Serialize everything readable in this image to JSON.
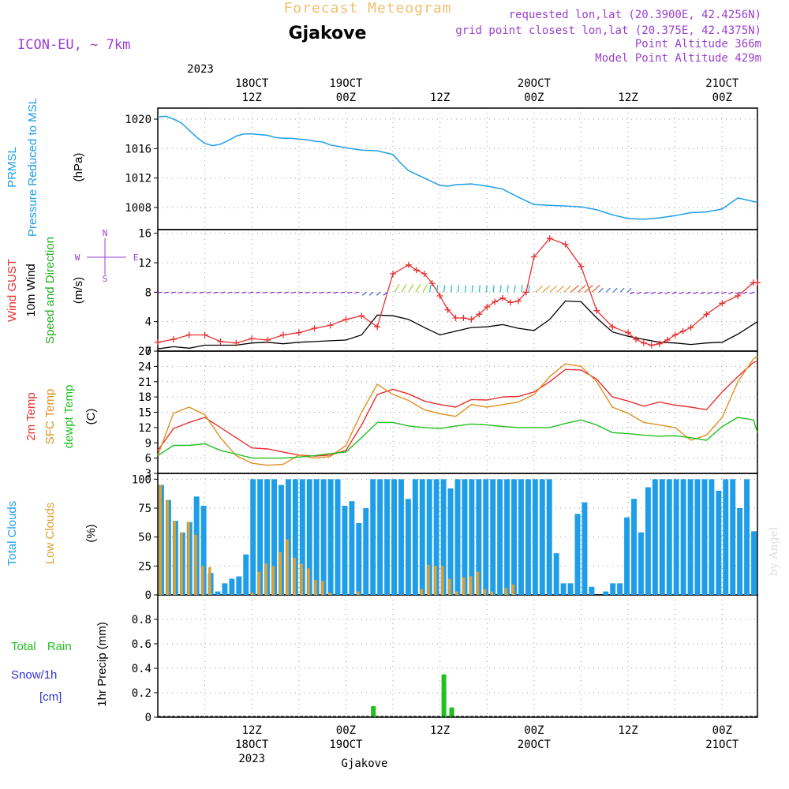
{
  "header": {
    "title": "Forecast Meteogram",
    "location": "Gjakove",
    "model": "ICON-EU, ~ 7km",
    "requested": "requested lon,lat (20.3900E, 42.4256N)",
    "gridpoint": "grid point closest lon,lat (20.375E, 42.4375N)",
    "point_alt": "Point Altitude 366m",
    "model_alt": "Model Point Altitude 429m",
    "credit": "by Angel",
    "footer_location": "Gjakove"
  },
  "time_axis": {
    "year": "2023",
    "top_labels": [
      {
        "h": 12,
        "l1": "18OCT",
        "l2": "12Z"
      },
      {
        "h": 24,
        "l1": "19OCT",
        "l2": "00Z"
      },
      {
        "h": 36,
        "l1": "",
        "l2": "12Z"
      },
      {
        "h": 48,
        "l1": "20OCT",
        "l2": "00Z"
      },
      {
        "h": 60,
        "l1": "",
        "l2": "12Z"
      },
      {
        "h": 72,
        "l1": "21OCT",
        "l2": "00Z"
      }
    ],
    "bottom_labels": [
      {
        "h": 12,
        "l1": "12Z",
        "l2": "18OCT",
        "l3": "2023"
      },
      {
        "h": 24,
        "l1": "00Z",
        "l2": "19OCT",
        "l3": ""
      },
      {
        "h": 36,
        "l1": "12Z",
        "l2": "",
        "l3": ""
      },
      {
        "h": 48,
        "l1": "00Z",
        "l2": "20OCT",
        "l3": ""
      },
      {
        "h": 60,
        "l1": "12Z",
        "l2": "",
        "l3": ""
      },
      {
        "h": 72,
        "l1": "00Z",
        "l2": "21OCT",
        "l3": ""
      }
    ],
    "hours_range": [
      0,
      76.5
    ]
  },
  "colors": {
    "pressure": "#1e9ee8",
    "gust": "#e83030",
    "wind": "#000000",
    "dir_label": "#20b020",
    "temp": "#e83030",
    "sfc": "#e09020",
    "dew": "#20c020",
    "total_cloud": "#1e9ee8",
    "low_cloud": "#e0a030",
    "rain": "#20c020",
    "snow": "#3030e0",
    "header_purple": "#9a3fd0",
    "header_title": "#f0c070"
  },
  "panel_labels": {
    "pressure": [
      "PRMSL",
      "Pressure Reduced to MSL",
      "(hPa)"
    ],
    "wind": [
      "Wind GUST",
      "10m Wind",
      "Speed and Direction",
      "(m/s)"
    ],
    "compass": {
      "n": "N",
      "s": "S",
      "e": "E",
      "w": "W"
    },
    "temp": [
      "2m Temp",
      "SFC Temp",
      "dewpt Temp",
      "(C)"
    ],
    "cloud": [
      "Total Clouds",
      "Low Clouds",
      "(%)"
    ],
    "precip": [
      "Total Rain",
      "Snow/1h",
      "[cm]",
      "1hr Precip (mm)"
    ]
  },
  "chart_data": [
    {
      "type": "line",
      "title": "PRMSL Pressure Reduced to MSL",
      "ylabel": "hPa",
      "ylim": [
        1005,
        1021.5
      ],
      "yticks": [
        1008,
        1012,
        1016,
        1020
      ],
      "series": [
        {
          "name": "PRMSL",
          "x": [
            0,
            1,
            2,
            3,
            4,
            5,
            6,
            7,
            8,
            9,
            10,
            11,
            12,
            13,
            14,
            15,
            16,
            17,
            18,
            19,
            20,
            21,
            22,
            23,
            24,
            26,
            28,
            30,
            31,
            32,
            34,
            36,
            37,
            38,
            40,
            42,
            44,
            46,
            48,
            50,
            52,
            54,
            56,
            58,
            60,
            62,
            64,
            66,
            68,
            70,
            72,
            74,
            76.5
          ],
          "values": [
            1020.3,
            1020.4,
            1020,
            1019.5,
            1018.5,
            1017.5,
            1016.7,
            1016.4,
            1016.6,
            1017.1,
            1017.7,
            1018,
            1018,
            1017.9,
            1017.8,
            1017.5,
            1017.4,
            1017.4,
            1017.3,
            1017.2,
            1017,
            1016.9,
            1016.5,
            1016.3,
            1016.1,
            1015.8,
            1015.7,
            1015.2,
            1014,
            1013,
            1012,
            1011,
            1010.9,
            1011.1,
            1011.2,
            1010.9,
            1010.5,
            1009.4,
            1008.4,
            1008.3,
            1008.2,
            1008.1,
            1007.7,
            1007,
            1006.5,
            1006.4,
            1006.6,
            1006.9,
            1007.3,
            1007.4,
            1007.8,
            1009.3,
            1008.7
          ]
        }
      ]
    },
    {
      "type": "line",
      "title": "Wind GUST and 10m Wind Speed",
      "ylabel": "m/s",
      "ylim": [
        0,
        16.5
      ],
      "yticks": [
        0,
        4,
        8,
        12,
        16
      ],
      "series": [
        {
          "name": "Wind GUST",
          "x": [
            0,
            2,
            4,
            6,
            8,
            10,
            12,
            14,
            16,
            18,
            20,
            22,
            24,
            26,
            28,
            30,
            32,
            33,
            34,
            35,
            36,
            37,
            38,
            39,
            40,
            41,
            42,
            43,
            44,
            45,
            46,
            47,
            48,
            50,
            52,
            54,
            56,
            58,
            60,
            61,
            62,
            63,
            64,
            65,
            66,
            67,
            68,
            70,
            72,
            74,
            76,
            76.5
          ],
          "values": [
            1.2,
            1.6,
            2.2,
            2.2,
            1.3,
            1.1,
            1.7,
            1.5,
            2.2,
            2.5,
            3.1,
            3.5,
            4.3,
            4.8,
            3.3,
            10.5,
            11.7,
            11,
            10.5,
            9.2,
            7.5,
            5.6,
            4.5,
            4.5,
            4.3,
            5,
            6,
            6.7,
            7.2,
            6.6,
            6.8,
            8,
            12.8,
            15.3,
            14.5,
            11.5,
            5.5,
            3.3,
            2.5,
            1.6,
            1.1,
            0.8,
            1,
            1.5,
            2.2,
            2.7,
            3.2,
            5,
            6.5,
            7.5,
            9.3,
            9.3
          ]
        },
        {
          "name": "10m Wind",
          "x": [
            0,
            2,
            4,
            6,
            8,
            10,
            12,
            14,
            16,
            18,
            20,
            22,
            24,
            26,
            28,
            30,
            32,
            34,
            36,
            38,
            40,
            42,
            44,
            46,
            48,
            50,
            52,
            54,
            56,
            58,
            60,
            62,
            64,
            66,
            68,
            70,
            72,
            74,
            76.5
          ],
          "values": [
            0.3,
            0.6,
            0.4,
            0.8,
            0.8,
            0.8,
            1.1,
            1.2,
            1,
            1.2,
            1.3,
            1.4,
            1.5,
            2.2,
            4.9,
            4.8,
            4.3,
            3.2,
            2.2,
            2.7,
            3.2,
            3.3,
            3.6,
            3.1,
            2.8,
            4.3,
            6.8,
            6.7,
            4.5,
            2.6,
            2.0,
            1.6,
            1.2,
            1.1,
            0.9,
            1.1,
            1.2,
            2.3,
            4.0
          ]
        }
      ]
    },
    {
      "type": "line",
      "title": "2m Temp, SFC Temp, dewpt Temp",
      "ylabel": "C",
      "ylim": [
        3,
        27
      ],
      "yticks": [
        3,
        6,
        9,
        12,
        15,
        18,
        21,
        24,
        27
      ],
      "series": [
        {
          "name": "2m Temp",
          "x": [
            0,
            2,
            4,
            6,
            8,
            10,
            12,
            14,
            16,
            18,
            20,
            22,
            24,
            26,
            28,
            30,
            32,
            34,
            36,
            38,
            40,
            42,
            44,
            46,
            48,
            50,
            52,
            54,
            56,
            58,
            60,
            62,
            64,
            66,
            68,
            70,
            72,
            74,
            76,
            76.5
          ],
          "values": [
            7.5,
            11.8,
            13,
            14,
            12,
            10,
            8,
            7.8,
            7.2,
            6.6,
            6.4,
            6.6,
            7.5,
            12.5,
            18.5,
            19.5,
            18.6,
            17.2,
            16.5,
            16,
            17.5,
            17.4,
            18,
            18.1,
            19,
            21,
            23.4,
            23.3,
            21.5,
            18,
            17.2,
            16.2,
            17,
            16.4,
            16,
            15.5,
            19,
            22,
            24.8,
            25
          ]
        },
        {
          "name": "SFC Temp",
          "x": [
            0,
            2,
            4,
            6,
            8,
            10,
            12,
            14,
            16,
            18,
            20,
            22,
            24,
            26,
            28,
            30,
            32,
            34,
            36,
            38,
            40,
            42,
            44,
            46,
            48,
            50,
            52,
            54,
            56,
            58,
            60,
            62,
            64,
            66,
            68,
            70,
            72,
            74,
            76,
            76.5
          ],
          "values": [
            6.5,
            14.8,
            16,
            14.5,
            10,
            6.5,
            5,
            4.6,
            4.8,
            6.6,
            6,
            6.3,
            8.5,
            15,
            20.5,
            18.5,
            17.3,
            15.5,
            14.7,
            14.2,
            16.5,
            16,
            16.5,
            17,
            18.5,
            22,
            24.5,
            24,
            21,
            16,
            14.8,
            13,
            12.5,
            12,
            9.5,
            10.5,
            14,
            21,
            25.5,
            26
          ]
        },
        {
          "name": "dewpt Temp",
          "x": [
            0,
            2,
            4,
            6,
            8,
            10,
            12,
            14,
            16,
            18,
            20,
            22,
            24,
            26,
            28,
            30,
            32,
            34,
            36,
            38,
            40,
            42,
            44,
            46,
            48,
            50,
            52,
            54,
            56,
            58,
            60,
            62,
            64,
            66,
            68,
            70,
            72,
            74,
            76,
            76.5
          ],
          "values": [
            6.5,
            8.5,
            8.5,
            8.8,
            7.5,
            6.8,
            6,
            6,
            6,
            6.2,
            6.5,
            6.9,
            7.2,
            10,
            13,
            13,
            12.3,
            12,
            11.8,
            12.3,
            12.7,
            12.5,
            12.2,
            12,
            12,
            12,
            12.8,
            13.5,
            12.5,
            11,
            10.8,
            10.5,
            10.3,
            10.4,
            10,
            9.5,
            12.2,
            14,
            13.5,
            11
          ]
        }
      ]
    },
    {
      "type": "bar",
      "title": "Total Clouds and Low Clouds",
      "ylabel": "%",
      "ylim": [
        0,
        105
      ],
      "yticks": [
        0,
        25,
        50,
        75,
        100
      ],
      "series": [
        {
          "name": "Total Clouds",
          "x_start": 0,
          "values": [
            95,
            82,
            64,
            54,
            63,
            85,
            77,
            19,
            3,
            10,
            14,
            16,
            35,
            100,
            100,
            100,
            100,
            95,
            100,
            100,
            100,
            100,
            100,
            100,
            100,
            100,
            77,
            81,
            62,
            75,
            100,
            100,
            100,
            100,
            100,
            83,
            100,
            100,
            100,
            100,
            100,
            92,
            100,
            100,
            100,
            100,
            100,
            100,
            100,
            100,
            100,
            100,
            100,
            100,
            100,
            100,
            36,
            10,
            10,
            70,
            80,
            7,
            0,
            3,
            10,
            10,
            67,
            83,
            54,
            93,
            100,
            100,
            100,
            100,
            100,
            100,
            100,
            100,
            100,
            90,
            100,
            100,
            75,
            100,
            55
          ]
        },
        {
          "name": "Low Clouds",
          "x_start": 0,
          "values": [
            95,
            82,
            64,
            54,
            63,
            52,
            25,
            24,
            0,
            0,
            0,
            0,
            0,
            2,
            20,
            27,
            25,
            37,
            48,
            32,
            27,
            23,
            13,
            12,
            2,
            0,
            0,
            0,
            3,
            0,
            0,
            0,
            0,
            0,
            0,
            0,
            0,
            5,
            26,
            25,
            25,
            14,
            3,
            15,
            16,
            20,
            5,
            3,
            0,
            6,
            9,
            0,
            0,
            0,
            0,
            0,
            0,
            0,
            0,
            0,
            0,
            0,
            0,
            0,
            0,
            0,
            0,
            0,
            0,
            0,
            0,
            0,
            0,
            0,
            0,
            0,
            0,
            0,
            0,
            0,
            0,
            0,
            0,
            0,
            0
          ]
        }
      ]
    },
    {
      "type": "bar",
      "title": "1hr Precip (mm)",
      "ylabel": "1hr Precip (mm)",
      "ylim": [
        0,
        1.0
      ],
      "yticks": [
        0,
        0.2,
        0.4,
        0.6,
        0.8
      ],
      "ytick_labels": [
        "0",
        "0.2",
        "0.4",
        "0.6",
        "0.8"
      ],
      "series": [
        {
          "name": "Total Rain",
          "x": [
            27.5,
            36.5,
            37.5
          ],
          "values": [
            0.09,
            0.35,
            0.08
          ]
        },
        {
          "name": "Snow/1h",
          "x": [],
          "values": []
        }
      ]
    }
  ]
}
